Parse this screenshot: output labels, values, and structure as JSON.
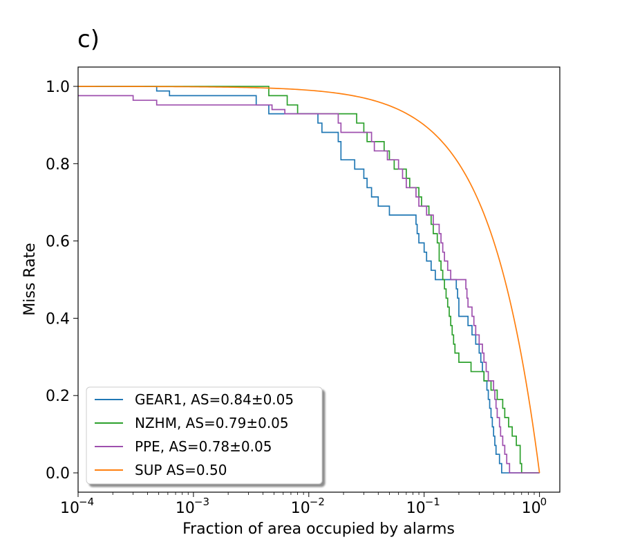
{
  "chart_data": {
    "type": "line",
    "panel_label": "c)",
    "title": "",
    "xlabel": "Fraction of area occupied by alarms",
    "ylabel": "Miss Rate",
    "xscale": "log",
    "xlim": [
      0.0001,
      1.5
    ],
    "ylim": [
      -0.05,
      1.05
    ],
    "x_ticks": [
      0.0001,
      0.001,
      0.01,
      0.1,
      1
    ],
    "x_tick_labels": [
      {
        "base": "10",
        "exp": "−4"
      },
      {
        "base": "10",
        "exp": "−3"
      },
      {
        "base": "10",
        "exp": "−2"
      },
      {
        "base": "10",
        "exp": "−1"
      },
      {
        "base": "10",
        "exp": "0"
      }
    ],
    "y_ticks": [
      0.0,
      0.2,
      0.4,
      0.6,
      0.8,
      1.0
    ],
    "y_tick_labels": [
      "0.0",
      "0.2",
      "0.4",
      "0.6",
      "0.8",
      "1.0"
    ],
    "grid": false,
    "legend_position": "lower-left",
    "series": [
      {
        "name": "GEAR1, AS=0.84±0.05",
        "color": "#1f77b4",
        "step": true,
        "points": [
          [
            0.0001,
            1.0
          ],
          [
            0.00048,
            1.0
          ],
          [
            0.00048,
            0.988
          ],
          [
            0.00062,
            0.988
          ],
          [
            0.00062,
            0.976
          ],
          [
            0.0035,
            0.976
          ],
          [
            0.0035,
            0.952
          ],
          [
            0.0045,
            0.952
          ],
          [
            0.0045,
            0.929
          ],
          [
            0.012,
            0.929
          ],
          [
            0.012,
            0.905
          ],
          [
            0.013,
            0.905
          ],
          [
            0.013,
            0.881
          ],
          [
            0.018,
            0.881
          ],
          [
            0.018,
            0.857
          ],
          [
            0.019,
            0.857
          ],
          [
            0.019,
            0.81
          ],
          [
            0.025,
            0.81
          ],
          [
            0.025,
            0.786
          ],
          [
            0.03,
            0.786
          ],
          [
            0.03,
            0.762
          ],
          [
            0.032,
            0.762
          ],
          [
            0.032,
            0.738
          ],
          [
            0.035,
            0.738
          ],
          [
            0.035,
            0.714
          ],
          [
            0.04,
            0.714
          ],
          [
            0.04,
            0.69
          ],
          [
            0.05,
            0.69
          ],
          [
            0.05,
            0.667
          ],
          [
            0.085,
            0.667
          ],
          [
            0.085,
            0.643
          ],
          [
            0.087,
            0.643
          ],
          [
            0.087,
            0.619
          ],
          [
            0.09,
            0.619
          ],
          [
            0.09,
            0.595
          ],
          [
            0.1,
            0.595
          ],
          [
            0.1,
            0.571
          ],
          [
            0.105,
            0.571
          ],
          [
            0.105,
            0.548
          ],
          [
            0.115,
            0.548
          ],
          [
            0.115,
            0.524
          ],
          [
            0.125,
            0.524
          ],
          [
            0.125,
            0.5
          ],
          [
            0.19,
            0.5
          ],
          [
            0.19,
            0.476
          ],
          [
            0.195,
            0.476
          ],
          [
            0.195,
            0.452
          ],
          [
            0.2,
            0.452
          ],
          [
            0.2,
            0.405
          ],
          [
            0.24,
            0.405
          ],
          [
            0.24,
            0.381
          ],
          [
            0.26,
            0.381
          ],
          [
            0.26,
            0.357
          ],
          [
            0.28,
            0.357
          ],
          [
            0.28,
            0.333
          ],
          [
            0.3,
            0.333
          ],
          [
            0.3,
            0.31
          ],
          [
            0.31,
            0.31
          ],
          [
            0.31,
            0.286
          ],
          [
            0.32,
            0.286
          ],
          [
            0.32,
            0.262
          ],
          [
            0.33,
            0.262
          ],
          [
            0.33,
            0.238
          ],
          [
            0.35,
            0.238
          ],
          [
            0.35,
            0.214
          ],
          [
            0.36,
            0.214
          ],
          [
            0.36,
            0.19
          ],
          [
            0.37,
            0.19
          ],
          [
            0.37,
            0.167
          ],
          [
            0.38,
            0.167
          ],
          [
            0.38,
            0.143
          ],
          [
            0.39,
            0.143
          ],
          [
            0.39,
            0.119
          ],
          [
            0.4,
            0.119
          ],
          [
            0.4,
            0.095
          ],
          [
            0.41,
            0.095
          ],
          [
            0.41,
            0.071
          ],
          [
            0.42,
            0.071
          ],
          [
            0.42,
            0.048
          ],
          [
            0.45,
            0.048
          ],
          [
            0.45,
            0.024
          ],
          [
            0.47,
            0.024
          ],
          [
            0.47,
            0.0
          ],
          [
            1.0,
            0.0
          ]
        ]
      },
      {
        "name": "NZHM, AS=0.79±0.05",
        "color": "#2ca02c",
        "step": true,
        "points": [
          [
            0.0001,
            1.0
          ],
          [
            0.0045,
            1.0
          ],
          [
            0.0045,
            0.976
          ],
          [
            0.0065,
            0.976
          ],
          [
            0.0065,
            0.952
          ],
          [
            0.008,
            0.952
          ],
          [
            0.008,
            0.929
          ],
          [
            0.026,
            0.929
          ],
          [
            0.026,
            0.905
          ],
          [
            0.03,
            0.905
          ],
          [
            0.03,
            0.881
          ],
          [
            0.032,
            0.881
          ],
          [
            0.032,
            0.857
          ],
          [
            0.045,
            0.857
          ],
          [
            0.045,
            0.833
          ],
          [
            0.05,
            0.833
          ],
          [
            0.05,
            0.81
          ],
          [
            0.055,
            0.81
          ],
          [
            0.055,
            0.786
          ],
          [
            0.07,
            0.786
          ],
          [
            0.07,
            0.762
          ],
          [
            0.075,
            0.762
          ],
          [
            0.075,
            0.738
          ],
          [
            0.09,
            0.738
          ],
          [
            0.09,
            0.714
          ],
          [
            0.095,
            0.714
          ],
          [
            0.095,
            0.69
          ],
          [
            0.11,
            0.69
          ],
          [
            0.11,
            0.667
          ],
          [
            0.115,
            0.667
          ],
          [
            0.115,
            0.643
          ],
          [
            0.12,
            0.643
          ],
          [
            0.12,
            0.619
          ],
          [
            0.13,
            0.619
          ],
          [
            0.13,
            0.595
          ],
          [
            0.135,
            0.595
          ],
          [
            0.135,
            0.548
          ],
          [
            0.14,
            0.548
          ],
          [
            0.14,
            0.524
          ],
          [
            0.145,
            0.524
          ],
          [
            0.145,
            0.5
          ],
          [
            0.15,
            0.5
          ],
          [
            0.15,
            0.476
          ],
          [
            0.155,
            0.476
          ],
          [
            0.155,
            0.452
          ],
          [
            0.16,
            0.452
          ],
          [
            0.16,
            0.429
          ],
          [
            0.165,
            0.429
          ],
          [
            0.165,
            0.405
          ],
          [
            0.17,
            0.405
          ],
          [
            0.17,
            0.381
          ],
          [
            0.175,
            0.381
          ],
          [
            0.175,
            0.357
          ],
          [
            0.18,
            0.357
          ],
          [
            0.18,
            0.333
          ],
          [
            0.185,
            0.333
          ],
          [
            0.185,
            0.31
          ],
          [
            0.2,
            0.31
          ],
          [
            0.2,
            0.286
          ],
          [
            0.255,
            0.286
          ],
          [
            0.255,
            0.262
          ],
          [
            0.33,
            0.262
          ],
          [
            0.33,
            0.238
          ],
          [
            0.38,
            0.238
          ],
          [
            0.38,
            0.214
          ],
          [
            0.43,
            0.214
          ],
          [
            0.43,
            0.19
          ],
          [
            0.48,
            0.19
          ],
          [
            0.48,
            0.167
          ],
          [
            0.5,
            0.167
          ],
          [
            0.5,
            0.143
          ],
          [
            0.54,
            0.143
          ],
          [
            0.54,
            0.119
          ],
          [
            0.58,
            0.119
          ],
          [
            0.58,
            0.095
          ],
          [
            0.63,
            0.095
          ],
          [
            0.63,
            0.071
          ],
          [
            0.68,
            0.071
          ],
          [
            0.68,
            0.024
          ],
          [
            0.7,
            0.024
          ],
          [
            0.7,
            0.0
          ],
          [
            1.0,
            0.0
          ]
        ]
      },
      {
        "name": "PPE, AS=0.78±0.05",
        "color": "#9e4fae",
        "step": true,
        "points": [
          [
            0.0001,
            0.976
          ],
          [
            0.0003,
            0.976
          ],
          [
            0.0003,
            0.964
          ],
          [
            0.00048,
            0.964
          ],
          [
            0.00048,
            0.952
          ],
          [
            0.0048,
            0.952
          ],
          [
            0.0048,
            0.94
          ],
          [
            0.0062,
            0.94
          ],
          [
            0.0062,
            0.929
          ],
          [
            0.018,
            0.929
          ],
          [
            0.018,
            0.905
          ],
          [
            0.019,
            0.905
          ],
          [
            0.019,
            0.881
          ],
          [
            0.035,
            0.881
          ],
          [
            0.035,
            0.857
          ],
          [
            0.037,
            0.857
          ],
          [
            0.037,
            0.833
          ],
          [
            0.048,
            0.833
          ],
          [
            0.048,
            0.81
          ],
          [
            0.06,
            0.81
          ],
          [
            0.06,
            0.786
          ],
          [
            0.065,
            0.786
          ],
          [
            0.065,
            0.762
          ],
          [
            0.07,
            0.762
          ],
          [
            0.07,
            0.738
          ],
          [
            0.085,
            0.738
          ],
          [
            0.085,
            0.714
          ],
          [
            0.09,
            0.714
          ],
          [
            0.09,
            0.69
          ],
          [
            0.105,
            0.69
          ],
          [
            0.105,
            0.667
          ],
          [
            0.12,
            0.667
          ],
          [
            0.12,
            0.643
          ],
          [
            0.135,
            0.643
          ],
          [
            0.135,
            0.619
          ],
          [
            0.14,
            0.619
          ],
          [
            0.14,
            0.595
          ],
          [
            0.145,
            0.595
          ],
          [
            0.145,
            0.571
          ],
          [
            0.15,
            0.571
          ],
          [
            0.15,
            0.548
          ],
          [
            0.16,
            0.548
          ],
          [
            0.16,
            0.524
          ],
          [
            0.17,
            0.524
          ],
          [
            0.17,
            0.5
          ],
          [
            0.23,
            0.5
          ],
          [
            0.23,
            0.476
          ],
          [
            0.235,
            0.476
          ],
          [
            0.235,
            0.452
          ],
          [
            0.24,
            0.452
          ],
          [
            0.24,
            0.429
          ],
          [
            0.26,
            0.429
          ],
          [
            0.26,
            0.405
          ],
          [
            0.27,
            0.405
          ],
          [
            0.27,
            0.381
          ],
          [
            0.28,
            0.381
          ],
          [
            0.28,
            0.357
          ],
          [
            0.3,
            0.357
          ],
          [
            0.3,
            0.333
          ],
          [
            0.32,
            0.333
          ],
          [
            0.32,
            0.31
          ],
          [
            0.33,
            0.31
          ],
          [
            0.33,
            0.286
          ],
          [
            0.345,
            0.286
          ],
          [
            0.345,
            0.262
          ],
          [
            0.36,
            0.262
          ],
          [
            0.36,
            0.238
          ],
          [
            0.4,
            0.238
          ],
          [
            0.4,
            0.214
          ],
          [
            0.41,
            0.214
          ],
          [
            0.41,
            0.19
          ],
          [
            0.42,
            0.19
          ],
          [
            0.42,
            0.167
          ],
          [
            0.43,
            0.167
          ],
          [
            0.43,
            0.143
          ],
          [
            0.45,
            0.143
          ],
          [
            0.45,
            0.119
          ],
          [
            0.46,
            0.119
          ],
          [
            0.46,
            0.095
          ],
          [
            0.48,
            0.095
          ],
          [
            0.48,
            0.071
          ],
          [
            0.5,
            0.071
          ],
          [
            0.5,
            0.048
          ],
          [
            0.52,
            0.048
          ],
          [
            0.52,
            0.024
          ],
          [
            0.55,
            0.024
          ],
          [
            0.55,
            0.0
          ],
          [
            1.0,
            0.0
          ]
        ]
      },
      {
        "name": "SUP AS=0.50",
        "color": "#ff7f0e",
        "step": false,
        "function": "1 - x"
      }
    ]
  }
}
